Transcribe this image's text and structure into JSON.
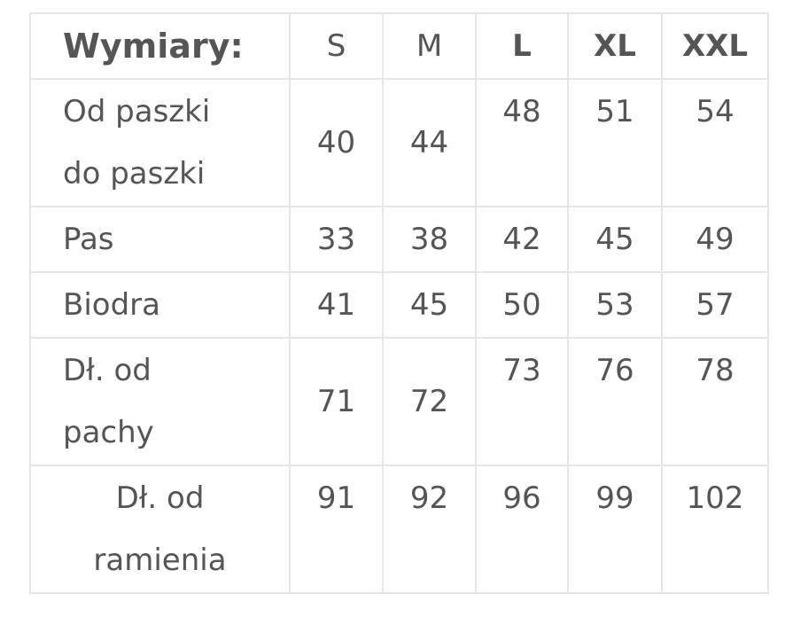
{
  "header": {
    "title": "Wymiary:",
    "sizes": [
      "S",
      "M",
      "L",
      "XL",
      "XXL"
    ]
  },
  "rows": [
    {
      "label": "Od paszki do paszki",
      "values": [
        "40",
        "44",
        "48",
        "51",
        "54"
      ]
    },
    {
      "label": "Pas",
      "values": [
        "33",
        "38",
        "42",
        "45",
        "49"
      ]
    },
    {
      "label": "Biodra",
      "values": [
        "41",
        "45",
        "50",
        "53",
        "57"
      ]
    },
    {
      "label": "Dł. od pachy",
      "values": [
        "71",
        "72",
        "73",
        "76",
        "78"
      ]
    },
    {
      "label": "Dł. od ramienia",
      "values": [
        "91",
        "92",
        "96",
        "99",
        "102"
      ]
    }
  ],
  "colors": {
    "text": "#555555",
    "border": "#e6e6e6"
  }
}
